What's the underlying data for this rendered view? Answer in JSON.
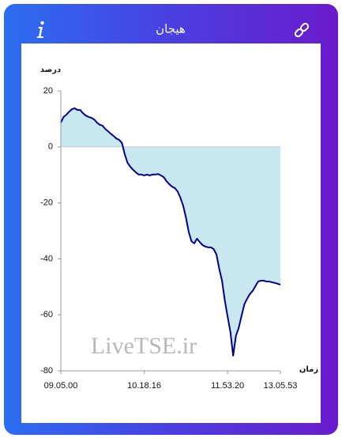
{
  "chart_data": {
    "type": "line",
    "title": "هیجان",
    "xlabel": "زمان",
    "ylabel": "درصد",
    "annotation": "LiveTSE.ir",
    "color": "#00008b",
    "fill_color": "#c9e7f1",
    "ylim": [
      -80,
      20
    ],
    "yticks": [
      20,
      0,
      -20,
      -40,
      -60,
      -80
    ],
    "categories": [
      "09.05.00",
      null,
      null,
      null,
      null,
      null,
      null,
      null,
      null,
      null,
      null,
      null,
      null,
      null,
      null,
      null,
      null,
      null,
      null,
      null,
      null,
      null,
      null,
      null,
      null,
      null,
      null,
      null,
      null,
      null,
      "10.18.16",
      null,
      null,
      null,
      null,
      null,
      null,
      null,
      null,
      null,
      null,
      null,
      null,
      null,
      null,
      null,
      null,
      null,
      null,
      null,
      null,
      null,
      null,
      null,
      null,
      null,
      null,
      null,
      null,
      null,
      "11.53.20",
      null,
      null,
      null,
      null,
      null,
      null,
      null,
      null,
      null,
      null,
      null,
      null,
      null,
      null,
      null,
      null,
      null,
      null,
      "13.05.53"
    ],
    "values": [
      8.7,
      10.7,
      11.5,
      12.6,
      13.5,
      13.8,
      13.2,
      13.2,
      12,
      11.2,
      10.7,
      10.4,
      9.8,
      8.7,
      7.9,
      7.6,
      6.4,
      5.6,
      4.7,
      3.9,
      3,
      2.5,
      1.4,
      -2.6,
      -5.7,
      -7.1,
      -8.2,
      -9.1,
      -9.9,
      -9.9,
      -10.2,
      -9.9,
      -10.2,
      -9.9,
      -9.9,
      -9.7,
      -10.2,
      -10.8,
      -12.2,
      -13.3,
      -14.2,
      -14.7,
      -15.9,
      -18.1,
      -20.9,
      -25.2,
      -30.3,
      -33.7,
      -34.5,
      -32.8,
      -34,
      -35.1,
      -35.6,
      -35.9,
      -35.9,
      -36.5,
      -38.5,
      -43.6,
      -47.8,
      -54.8,
      -60.5,
      -66.1,
      -74.6,
      -67.5,
      -64.7,
      -60.5,
      -56.3,
      -54.3,
      -52.6,
      -51.5,
      -49.8,
      -48.1,
      -47.8,
      -47.8,
      -48.1,
      -48.1,
      -48.4,
      -48.6,
      -48.9,
      -49.2
    ]
  }
}
